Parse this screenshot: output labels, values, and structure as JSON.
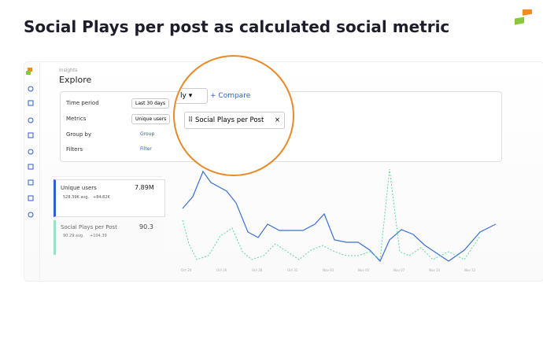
{
  "header": {
    "title": "Social Plays per post as calculated social metric"
  },
  "app": {
    "section": "Insights",
    "page": "Explore",
    "filters": {
      "time_period_label": "Time period",
      "time_period_value": "Last 30 days",
      "metrics_label": "Metrics",
      "metric_chip": "Unique users",
      "group_by_label": "Group by",
      "group_button": "Group",
      "filters_label": "Filters",
      "filter_button": "Filter"
    },
    "magnifier": {
      "partial_dropdown": "ly",
      "compare": "Compare",
      "metric_chip": "Social Plays per Post"
    },
    "metric_cards": [
      {
        "name": "Unique users",
        "value": "7.89M",
        "avg": "528.39K avg.",
        "delta": "+84.82K"
      },
      {
        "name": "Social Plays per Post",
        "value": "90.3",
        "avg": "90.29 avg.",
        "delta": "+104.39"
      }
    ],
    "x_labels": [
      "Oct 24",
      "Oct 26",
      "Oct 28",
      "Oct 31",
      "Nov 02",
      "Nov 05",
      "Nov 07",
      "Nov 10",
      "Nov 12"
    ]
  }
}
